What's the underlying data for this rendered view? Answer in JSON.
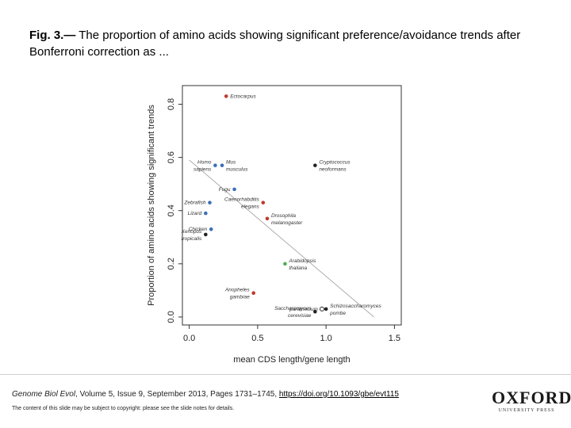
{
  "caption": {
    "label": "Fig. 3.—",
    "text": " The proportion of amino acids showing significant preference/avoidance trends after Bonferroni correction as ..."
  },
  "chart_data": {
    "type": "scatter",
    "xlabel": "mean CDS length/gene length",
    "ylabel": "Proportion of amino acids showing significant trends",
    "xlim": [
      -0.05,
      1.55
    ],
    "ylim": [
      -0.03,
      0.87
    ],
    "xticks": [
      "0.0",
      "0.5",
      "1.0",
      "1.5"
    ],
    "yticks": [
      "0.0",
      "0.2",
      "0.4",
      "0.6",
      "0.8"
    ],
    "grid": false,
    "trendline": {
      "x": [
        0.0,
        1.35
      ],
      "y": [
        0.59,
        0.0
      ]
    },
    "points": [
      {
        "x": 0.27,
        "y": 0.83,
        "color": "#c0392b",
        "label": [
          "Ectocarpus"
        ],
        "anchor": "right"
      },
      {
        "x": 0.19,
        "y": 0.57,
        "color": "#3b6fb6",
        "label": [
          "Homo",
          "sapiens"
        ],
        "anchor": "left"
      },
      {
        "x": 0.24,
        "y": 0.57,
        "color": "#3b6fb6",
        "label": [
          "Mus",
          "musculus"
        ],
        "anchor": "right"
      },
      {
        "x": 0.92,
        "y": 0.57,
        "color": "#222222",
        "label": [
          "Cryptococcus",
          "neoformans"
        ],
        "anchor": "right"
      },
      {
        "x": 0.33,
        "y": 0.48,
        "color": "#3b6fb6",
        "label": [
          "Fugu"
        ],
        "anchor": "left"
      },
      {
        "x": 0.15,
        "y": 0.43,
        "color": "#3b6fb6",
        "label": [
          "Zebrafish"
        ],
        "anchor": "left"
      },
      {
        "x": 0.54,
        "y": 0.43,
        "color": "#c0392b",
        "label": [
          "Caenorhabditis",
          "elegans"
        ],
        "anchor": "left"
      },
      {
        "x": 0.12,
        "y": 0.39,
        "color": "#3b6fb6",
        "label": [
          "Lizard"
        ],
        "anchor": "left"
      },
      {
        "x": 0.57,
        "y": 0.37,
        "color": "#c0392b",
        "label": [
          "Drosophila",
          "melanogaster"
        ],
        "anchor": "right"
      },
      {
        "x": 0.16,
        "y": 0.33,
        "color": "#3b6fb6",
        "label": [
          "Chicken"
        ],
        "anchor": "left"
      },
      {
        "x": 0.12,
        "y": 0.31,
        "color": "#222222",
        "label": [
          "Xenopus",
          "tropicalis"
        ],
        "anchor": "left"
      },
      {
        "x": 0.7,
        "y": 0.2,
        "color": "#4caf50",
        "label": [
          "Arabidopsis",
          "thaliana"
        ],
        "anchor": "right"
      },
      {
        "x": 0.47,
        "y": 0.09,
        "color": "#c0392b",
        "label": [
          "Anopheles",
          "gambiae"
        ],
        "anchor": "left"
      },
      {
        "x": 0.97,
        "y": 0.03,
        "color": "#222222",
        "label": [
          "paramecium"
        ],
        "anchor": "left",
        "open": true
      },
      {
        "x": 0.92,
        "y": 0.02,
        "color": "#222222",
        "label": [
          "Saccharomyces",
          "cerevisiae"
        ],
        "anchor": "left"
      },
      {
        "x": 1.0,
        "y": 0.03,
        "color": "#222222",
        "label": [
          "Schizosaccharomyces",
          "pombe"
        ],
        "anchor": "right"
      }
    ]
  },
  "footer": {
    "journal": "Genome Biol Evol",
    "citation_text": ", Volume 5, Issue 9, September 2013, Pages 1731–1745, ",
    "doi": "https://doi.org/10.1093/gbe/evt115",
    "copyright": "The content of this slide may be subject to copyright: please see the slide notes for details.",
    "logo_main": "OXFORD",
    "logo_sub": "UNIVERSITY PRESS"
  }
}
